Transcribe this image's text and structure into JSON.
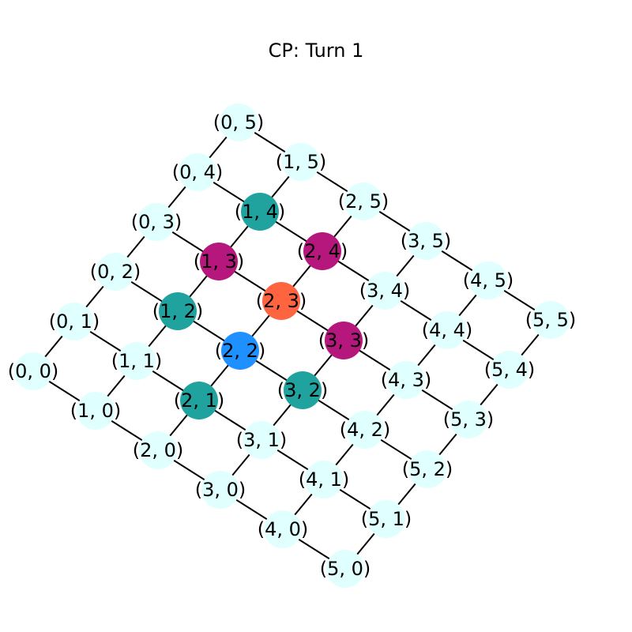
{
  "title": "CP: Turn 1",
  "grid_size": 6,
  "colors": {
    "edge": "#000000",
    "default": "#e0ffff",
    "current": "#1e90ff",
    "target": "#ff6440",
    "neighbor": "#20a39e",
    "diagonal": "#b5177d"
  },
  "special_nodes": {
    "2,2": "current",
    "2,3": "target",
    "1,4": "neighbor",
    "1,2": "neighbor",
    "2,1": "neighbor",
    "3,2": "neighbor",
    "1,3": "diagonal",
    "2,4": "diagonal",
    "3,3": "diagonal"
  },
  "node_labels": {
    "0,0": "(0, 0)",
    "0,1": "(0, 1)",
    "0,2": "(0, 2)",
    "0,3": "(0, 3)",
    "0,4": "(0, 4)",
    "0,5": "(0, 5)",
    "1,0": "(1, 0)",
    "1,1": "(1, 1)",
    "1,2": "(1, 2)",
    "1,3": "(1, 3)",
    "1,4": "(1, 4)",
    "1,5": "(1, 5)",
    "2,0": "(2, 0)",
    "2,1": "(2, 1)",
    "2,2": "(2, 2)",
    "2,3": "(2, 3)",
    "2,4": "(2, 4)",
    "2,5": "(2, 5)",
    "3,0": "(3, 0)",
    "3,1": "(3, 1)",
    "3,2": "(3, 2)",
    "3,3": "(3, 3)",
    "3,4": "(3, 4)",
    "3,5": "(3, 5)",
    "4,0": "(4, 0)",
    "4,1": "(4, 1)",
    "4,2": "(4, 2)",
    "4,3": "(4, 3)",
    "4,4": "(4, 4)",
    "4,5": "(4, 5)",
    "5,0": "(5, 0)",
    "5,1": "(5, 1)",
    "5,2": "(5, 2)",
    "5,3": "(5, 3)",
    "5,4": "(5, 4)",
    "5,5": "(5, 5)"
  }
}
